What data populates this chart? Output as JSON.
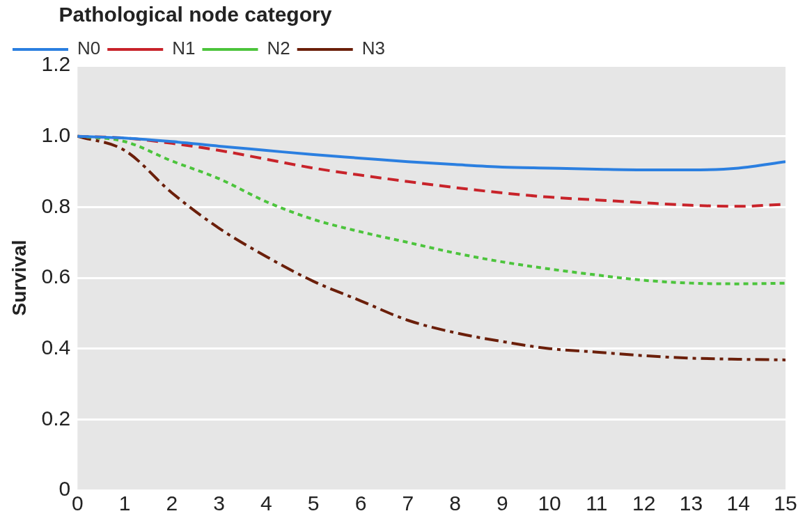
{
  "chart_data": {
    "type": "line",
    "legend_title": "Pathological node category",
    "ylabel": "Survival",
    "x": [
      0,
      1,
      2,
      3,
      4,
      5,
      6,
      7,
      8,
      9,
      10,
      11,
      12,
      13,
      14,
      15
    ],
    "series": [
      {
        "name": "N0",
        "color": "#2b7fe0",
        "line_style": "solid",
        "values": [
          1.0,
          0.995,
          0.985,
          0.972,
          0.96,
          0.948,
          0.938,
          0.928,
          0.92,
          0.913,
          0.91,
          0.907,
          0.905,
          0.905,
          0.91,
          0.928
        ]
      },
      {
        "name": "N1",
        "color": "#c8232a",
        "line_style": "dashed",
        "values": [
          1.0,
          0.995,
          0.98,
          0.96,
          0.935,
          0.91,
          0.89,
          0.872,
          0.855,
          0.84,
          0.828,
          0.82,
          0.812,
          0.805,
          0.802,
          0.808
        ]
      },
      {
        "name": "N2",
        "color": "#4cc43c",
        "line_style": "dotted",
        "values": [
          1.0,
          0.985,
          0.93,
          0.88,
          0.815,
          0.765,
          0.73,
          0.7,
          0.67,
          0.645,
          0.625,
          0.608,
          0.593,
          0.585,
          0.583,
          0.585
        ]
      },
      {
        "name": "N3",
        "color": "#6b1f0a",
        "line_style": "dashdot",
        "values": [
          1.0,
          0.96,
          0.84,
          0.74,
          0.66,
          0.59,
          0.535,
          0.48,
          0.445,
          0.42,
          0.4,
          0.39,
          0.38,
          0.373,
          0.37,
          0.368
        ]
      }
    ],
    "xlim": [
      0,
      15
    ],
    "xticks": [
      0,
      1,
      2,
      3,
      4,
      5,
      6,
      7,
      8,
      9,
      10,
      11,
      12,
      13,
      14,
      15
    ],
    "ylim": [
      0,
      1.2
    ],
    "yticks": [
      0,
      0.2,
      0.4,
      0.6,
      0.8,
      {
        "value": 1,
        "label": "1.0"
      },
      1.2
    ],
    "grid": "y",
    "legend": "top left",
    "marker": "none"
  }
}
